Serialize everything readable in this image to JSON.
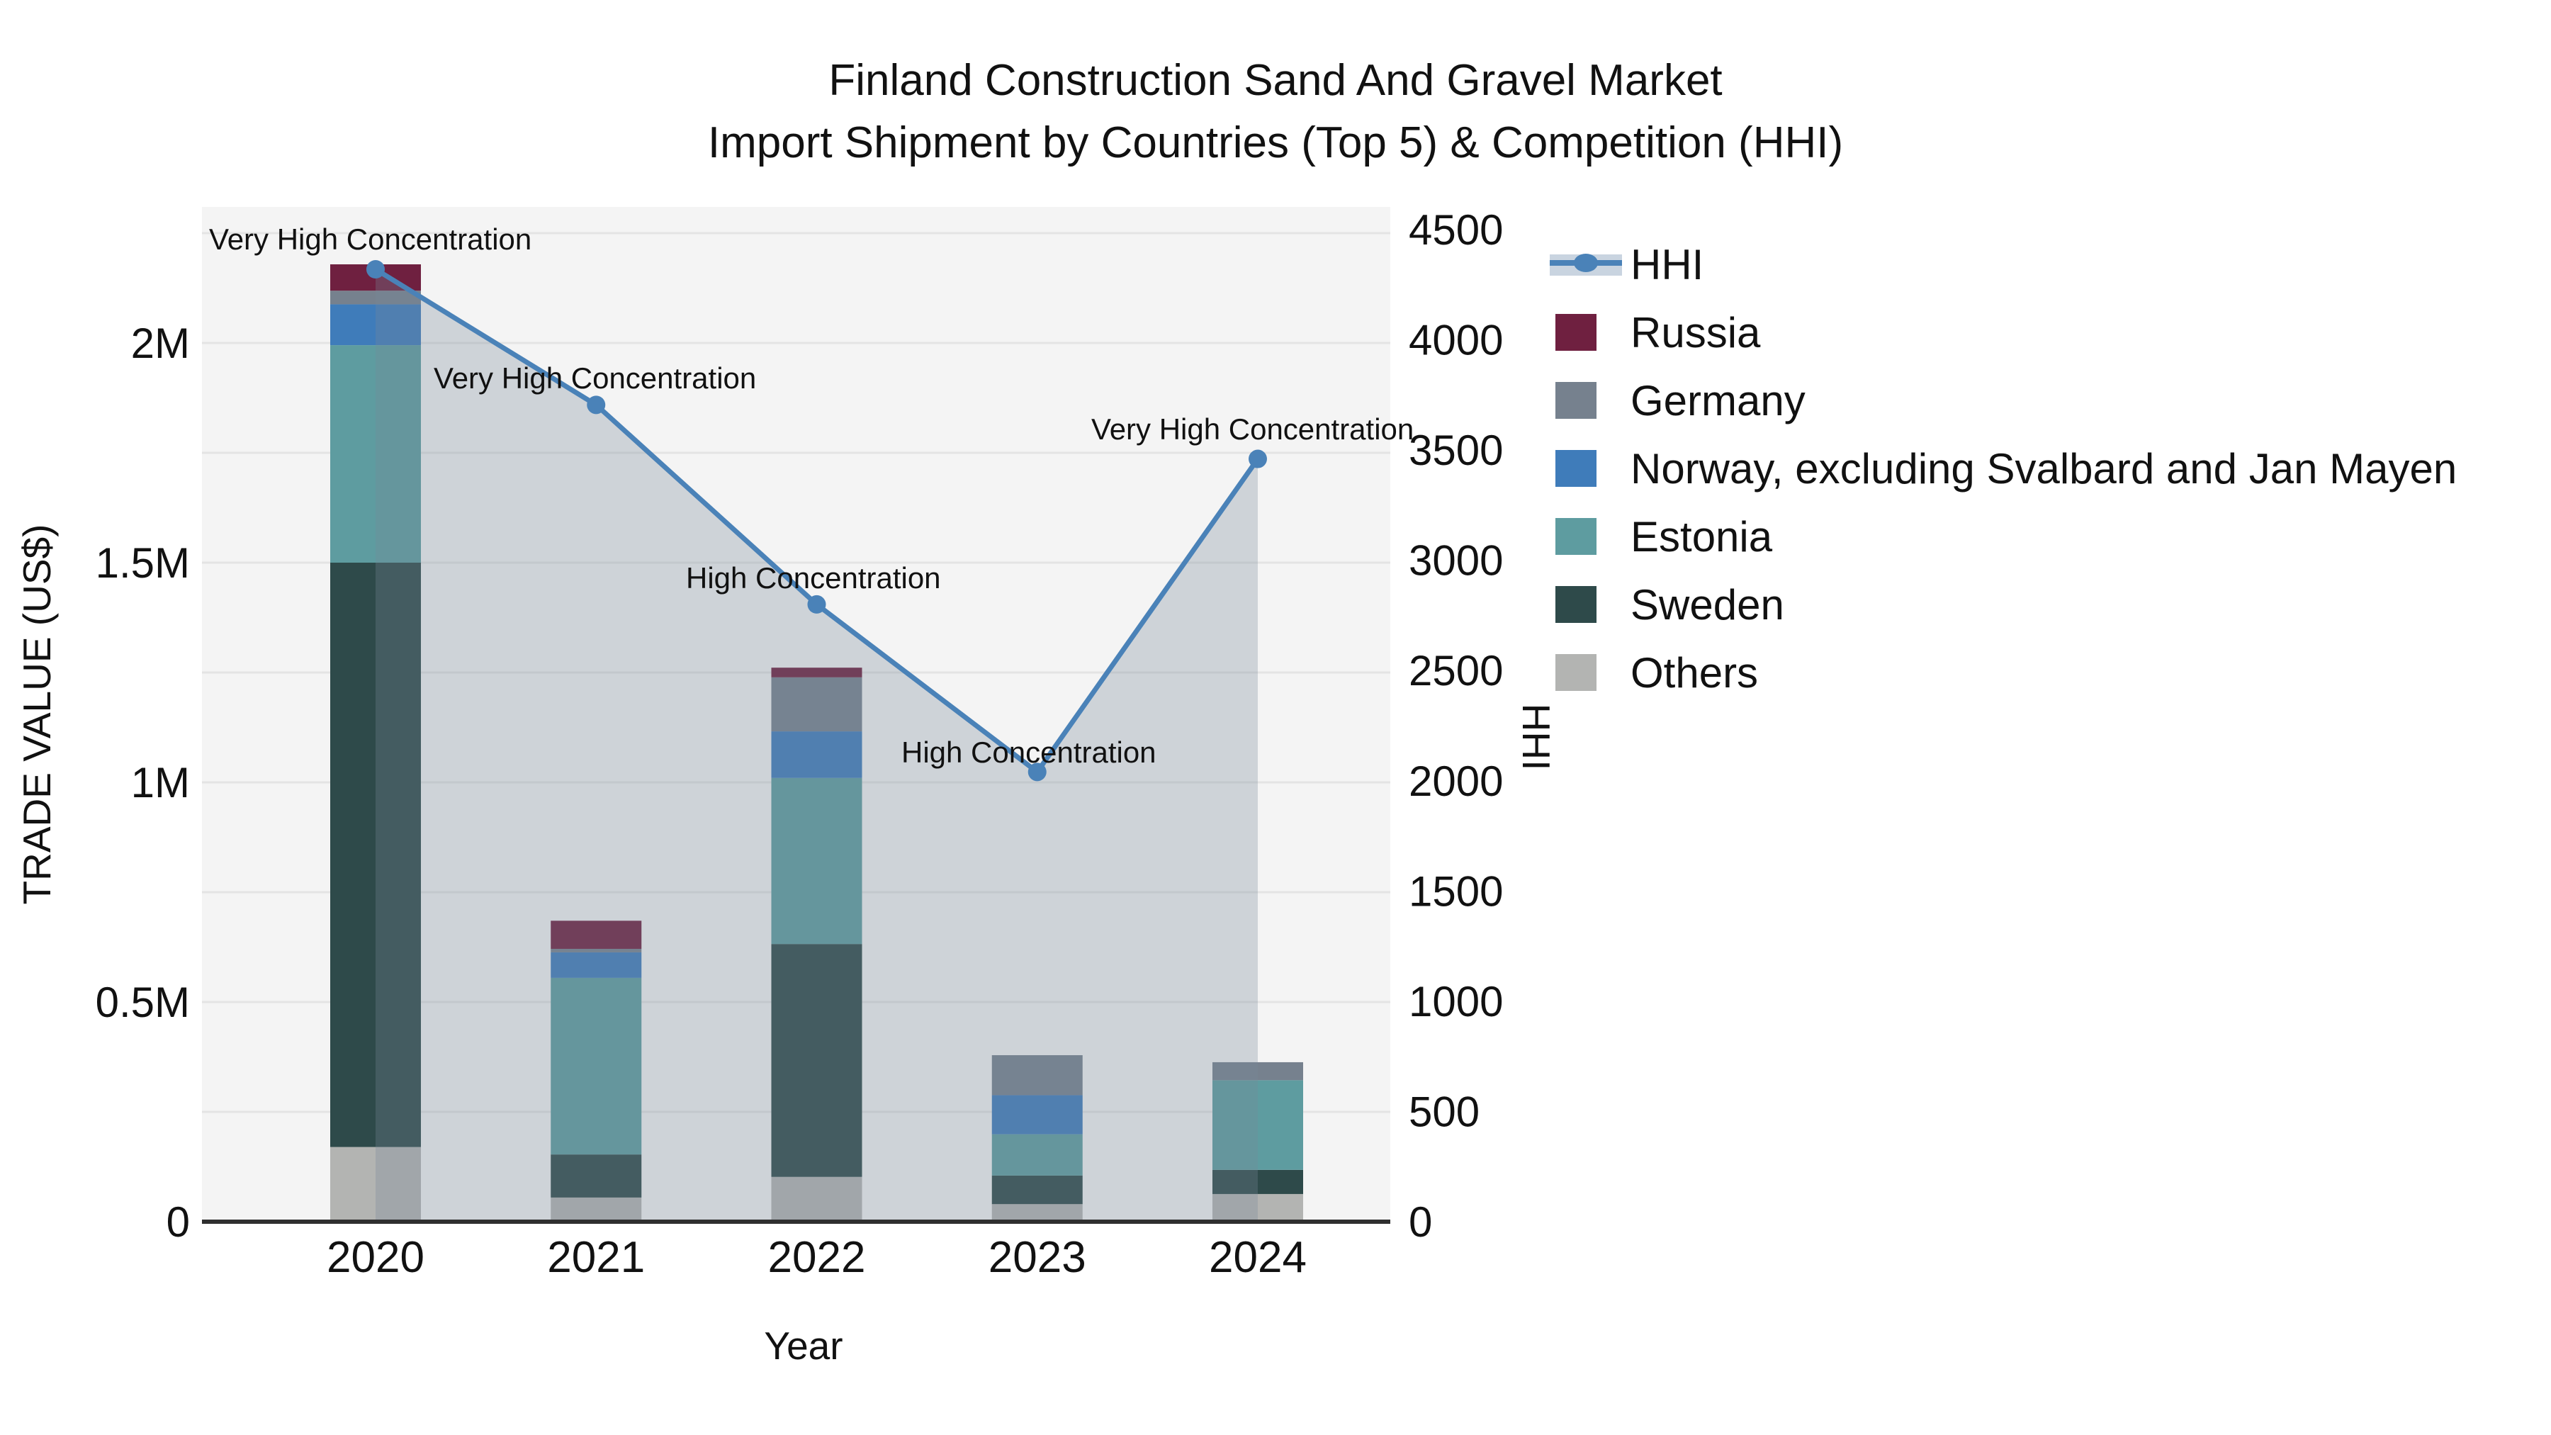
{
  "title": {
    "line1": "Finland Construction Sand And Gravel Market",
    "line2": "Import Shipment by Countries (Top 5) & Competition (HHI)"
  },
  "colors": {
    "plot_bg": "#f4f4f4",
    "grid": "#e4e4e4",
    "axis_line": "#2f2f2f",
    "text": "#111111",
    "hhi_line": "#4a82b8",
    "hhi_area": "rgba(120,135,152,0.30)",
    "legend_band": "#c9d4e0"
  },
  "chart_data": {
    "type": "bar",
    "subtype": "stacked-bars-with-hhi-line",
    "categories": [
      "2020",
      "2021",
      "2022",
      "2023",
      "2024"
    ],
    "series": [
      {
        "name": "Others",
        "color": "#b3b4b2",
        "values": [
          170000,
          55000,
          102000,
          40000,
          63000
        ]
      },
      {
        "name": "Sweden",
        "color": "#2e4a4a",
        "values": [
          1330000,
          98000,
          530000,
          65000,
          55000
        ]
      },
      {
        "name": "Estonia",
        "color": "#5e9ca0",
        "values": [
          495000,
          402000,
          378000,
          94000,
          204000
        ]
      },
      {
        "name": "Norway, excluding Svalbard and Jan Mayen",
        "color": "#3f7cba",
        "values": [
          93000,
          58000,
          106000,
          89000,
          0
        ]
      },
      {
        "name": "Germany",
        "color": "#76818e",
        "values": [
          31000,
          8000,
          123000,
          91000,
          41000
        ]
      },
      {
        "name": "Russia",
        "color": "#6f2040",
        "values": [
          60000,
          64000,
          22000,
          0,
          0
        ]
      }
    ],
    "line": {
      "name": "HHI",
      "color": "#4a82b8",
      "fill": "rgba(120,135,152,0.30)",
      "values": [
        4320,
        3705,
        2800,
        2040,
        3460
      ]
    },
    "annotations": [
      {
        "text": "Very High Concentration",
        "x": 295,
        "y": 352
      },
      {
        "text": "Very High Concentration",
        "x": 612,
        "y": 548
      },
      {
        "text": "High Concentration",
        "x": 968,
        "y": 830
      },
      {
        "text": "High Concentration",
        "x": 1272,
        "y": 1076
      },
      {
        "text": "Very High Concentration",
        "x": 1540,
        "y": 620
      }
    ],
    "left_axis": {
      "label": "TRADE VALUE (US$)",
      "ticks": [
        {
          "v": 0,
          "t": "0"
        },
        {
          "v": 500000,
          "t": "0.5M"
        },
        {
          "v": 1000000,
          "t": "1M"
        },
        {
          "v": 1500000,
          "t": "1.5M"
        },
        {
          "v": 2000000,
          "t": "2M"
        }
      ],
      "grid_step": 250000,
      "grid_max": 2250000,
      "ylim": [
        0,
        2310000
      ]
    },
    "right_axis": {
      "label": "HHI",
      "ticks": [
        0,
        500,
        1000,
        1500,
        2000,
        2500,
        3000,
        3500,
        4000,
        4500
      ],
      "ylim": [
        0,
        4500
      ]
    },
    "x_axis": {
      "label": "Year"
    },
    "legend_order": [
      "HHI",
      "Russia",
      "Germany",
      "Norway, excluding Svalbard and Jan Mayen",
      "Estonia",
      "Sweden",
      "Others"
    ],
    "grid": true,
    "legend_position": "right"
  }
}
